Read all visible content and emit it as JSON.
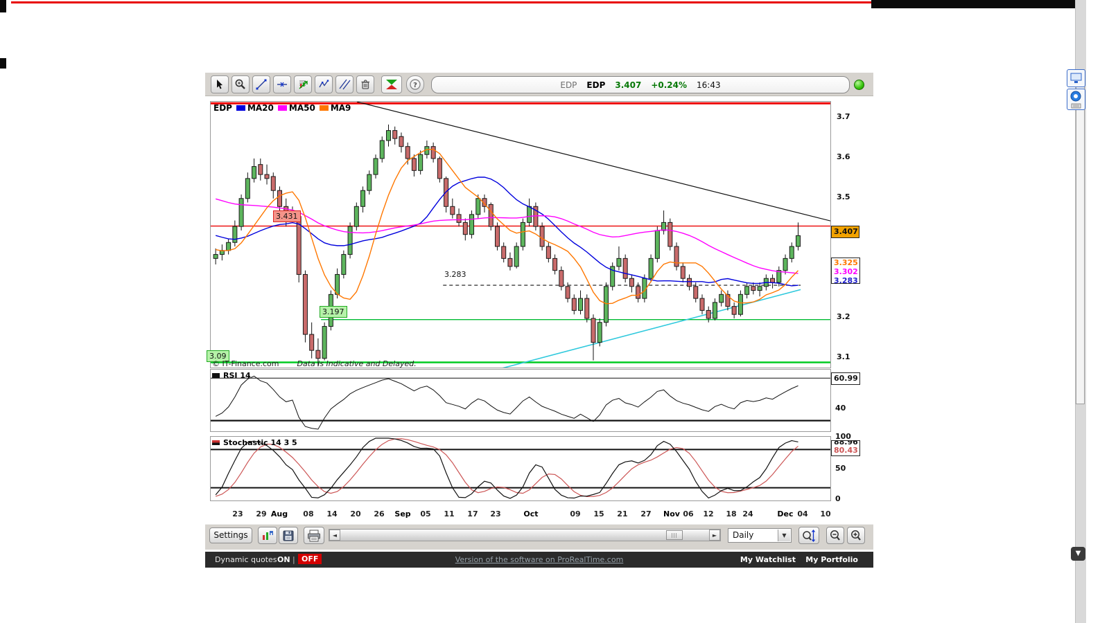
{
  "app": {
    "quote": {
      "exchange": "EDP",
      "symbol": "EDP",
      "last": "3.407",
      "change": "+0.24%",
      "time": "16:43"
    },
    "legend": {
      "symbol": "EDP",
      "items": [
        {
          "label": "MA20",
          "color": "#0000dd"
        },
        {
          "label": "MA50",
          "color": "#ff00ff"
        },
        {
          "label": "MA9",
          "color": "#ff7700"
        }
      ]
    },
    "copyright": "© IT-Finance.com",
    "disclaimer": "Data is Indicative and Delayed.",
    "rsi_label": "RSI 14",
    "stoch_label": "Stochastic 14 3 5"
  },
  "chart_data": {
    "type": "candlestick",
    "title": "EDP Daily with MA20/MA50/MA9, RSI 14, Stochastic 14 3 5",
    "colors": {
      "up": "#5db55d",
      "down": "#c96b6b",
      "wick": "#111111"
    },
    "price_axis": {
      "min": 3.077,
      "max": 3.742,
      "ticks": [
        {
          "label": "3.7",
          "value": 3.7
        },
        {
          "label": "3.6",
          "value": 3.6
        },
        {
          "label": "3.5",
          "value": 3.5
        },
        {
          "label": "3.2",
          "value": 3.2
        },
        {
          "label": "3.1",
          "value": 3.1
        }
      ]
    },
    "last_price_label": {
      "value": "3.407",
      "bg": "#f2a200"
    },
    "ma_labels": [
      {
        "value": "3.325",
        "color": "#ff7700"
      },
      {
        "value": "3.302",
        "color": "#ff00ff"
      },
      {
        "value": "3.283",
        "color": "#2222cc"
      }
    ],
    "price_labels": {
      "resistance": "3.431",
      "dashed": "3.283",
      "support1": "3.197",
      "support2": "3.09"
    },
    "hlines": [
      {
        "price": 3.738,
        "color": "#ee0000",
        "width": 3
      },
      {
        "price": 3.431,
        "color": "#ee2222",
        "width": 1.6
      },
      {
        "price": 3.283,
        "color": "#111111",
        "width": 1.2,
        "dash": true,
        "x1": 0.375,
        "x2": 0.952
      },
      {
        "price": 3.197,
        "color": "#00bb33",
        "width": 1.4,
        "x1": 0.178
      },
      {
        "price": 3.09,
        "color": "#00cc22",
        "width": 2.5
      }
    ],
    "trendlines": [
      {
        "x1": 0.236,
        "p1": 3.742,
        "x2": 1.0,
        "p2": 3.444,
        "color": "#111111",
        "width": 1.2
      },
      {
        "x1": 0.462,
        "p1": 3.072,
        "x2": 0.952,
        "p2": 3.272,
        "color": "#2fc9dd",
        "width": 1.6
      }
    ],
    "candle_span": {
      "start": 0.008,
      "end": 0.948
    },
    "x_ticks": [
      {
        "label": "23",
        "pos": 0.0447
      },
      {
        "label": "29",
        "pos": 0.0828
      },
      {
        "label": "Aug",
        "pos": 0.1119,
        "bold": true
      },
      {
        "label": "08",
        "pos": 0.1588
      },
      {
        "label": "14",
        "pos": 0.1969
      },
      {
        "label": "20",
        "pos": 0.2349
      },
      {
        "label": "26",
        "pos": 0.273
      },
      {
        "label": "Sep",
        "pos": 0.311,
        "bold": true
      },
      {
        "label": "05",
        "pos": 0.3479
      },
      {
        "label": "11",
        "pos": 0.3859
      },
      {
        "label": "17",
        "pos": 0.4239
      },
      {
        "label": "23",
        "pos": 0.4609
      },
      {
        "label": "Oct",
        "pos": 0.5179,
        "bold": true
      },
      {
        "label": "09",
        "pos": 0.5895
      },
      {
        "label": "15",
        "pos": 0.6275
      },
      {
        "label": "21",
        "pos": 0.6655
      },
      {
        "label": "27",
        "pos": 0.7036
      },
      {
        "label": "Nov",
        "pos": 0.745,
        "bold": true
      },
      {
        "label": "06",
        "pos": 0.7718
      },
      {
        "label": "12",
        "pos": 0.8043
      },
      {
        "label": "18",
        "pos": 0.8412
      },
      {
        "label": "24",
        "pos": 0.868
      },
      {
        "label": "Dec",
        "pos": 0.9284,
        "bold": true
      },
      {
        "label": "04",
        "pos": 0.9564
      },
      {
        "label": "10",
        "pos": 0.9933
      }
    ],
    "warmup_closes": [
      3.58,
      3.6,
      3.62,
      3.61,
      3.59,
      3.6,
      3.62,
      3.63,
      3.61,
      3.6,
      3.58,
      3.57,
      3.59,
      3.6,
      3.58,
      3.56,
      3.57,
      3.55,
      3.54,
      3.56,
      3.55,
      3.53,
      3.52,
      3.54,
      3.52,
      3.5,
      3.51,
      3.49,
      3.48,
      3.5,
      3.48,
      3.46,
      3.47,
      3.45,
      3.44,
      3.46,
      3.44,
      3.42,
      3.43,
      3.41,
      3.4,
      3.42,
      3.4,
      3.38,
      3.39,
      3.37,
      3.36,
      3.38,
      3.36,
      3.35
    ],
    "candles": [
      [
        3.35,
        3.375,
        3.335,
        3.36
      ],
      [
        3.36,
        3.385,
        3.345,
        3.37
      ],
      [
        3.37,
        3.4,
        3.36,
        3.39
      ],
      [
        3.39,
        3.445,
        3.38,
        3.43
      ],
      [
        3.43,
        3.51,
        3.42,
        3.5
      ],
      [
        3.5,
        3.565,
        3.49,
        3.55
      ],
      [
        3.55,
        3.6,
        3.54,
        3.58
      ],
      [
        3.585,
        3.6,
        3.545,
        3.56
      ],
      [
        3.56,
        3.585,
        3.535,
        3.55
      ],
      [
        3.555,
        3.565,
        3.5,
        3.52
      ],
      [
        3.52,
        3.53,
        3.465,
        3.48
      ],
      [
        3.48,
        3.5,
        3.43,
        3.45
      ],
      [
        3.45,
        3.48,
        3.44,
        3.46
      ],
      [
        3.455,
        3.46,
        3.29,
        3.31
      ],
      [
        3.31,
        3.32,
        3.14,
        3.16
      ],
      [
        3.16,
        3.19,
        3.1,
        3.12
      ],
      [
        3.12,
        3.15,
        3.08,
        3.1
      ],
      [
        3.1,
        3.19,
        3.095,
        3.18
      ],
      [
        3.18,
        3.27,
        3.17,
        3.26
      ],
      [
        3.26,
        3.325,
        3.25,
        3.31
      ],
      [
        3.31,
        3.37,
        3.3,
        3.36
      ],
      [
        3.36,
        3.44,
        3.35,
        3.43
      ],
      [
        3.43,
        3.49,
        3.42,
        3.48
      ],
      [
        3.48,
        3.53,
        3.465,
        3.52
      ],
      [
        3.52,
        3.57,
        3.51,
        3.56
      ],
      [
        3.56,
        3.61,
        3.55,
        3.6
      ],
      [
        3.6,
        3.655,
        3.59,
        3.645
      ],
      [
        3.645,
        3.685,
        3.63,
        3.67
      ],
      [
        3.67,
        3.68,
        3.635,
        3.65
      ],
      [
        3.655,
        3.665,
        3.615,
        3.63
      ],
      [
        3.63,
        3.64,
        3.585,
        3.6
      ],
      [
        3.6,
        3.61,
        3.555,
        3.57
      ],
      [
        3.57,
        3.62,
        3.56,
        3.61
      ],
      [
        3.61,
        3.645,
        3.6,
        3.63
      ],
      [
        3.63,
        3.64,
        3.59,
        3.6
      ],
      [
        3.6,
        3.605,
        3.54,
        3.55
      ],
      [
        3.55,
        3.555,
        3.465,
        3.48
      ],
      [
        3.48,
        3.5,
        3.45,
        3.46
      ],
      [
        3.46,
        3.475,
        3.43,
        3.44
      ],
      [
        3.44,
        3.45,
        3.395,
        3.41
      ],
      [
        3.41,
        3.47,
        3.4,
        3.46
      ],
      [
        3.46,
        3.51,
        3.45,
        3.5
      ],
      [
        3.5,
        3.51,
        3.465,
        3.48
      ],
      [
        3.485,
        3.49,
        3.42,
        3.43
      ],
      [
        3.43,
        3.44,
        3.37,
        3.38
      ],
      [
        3.38,
        3.39,
        3.34,
        3.35
      ],
      [
        3.35,
        3.365,
        3.32,
        3.33
      ],
      [
        3.33,
        3.39,
        3.325,
        3.38
      ],
      [
        3.38,
        3.45,
        3.37,
        3.44
      ],
      [
        3.44,
        3.5,
        3.43,
        3.48
      ],
      [
        3.48,
        3.49,
        3.42,
        3.43
      ],
      [
        3.43,
        3.44,
        3.37,
        3.38
      ],
      [
        3.38,
        3.39,
        3.34,
        3.35
      ],
      [
        3.35,
        3.36,
        3.31,
        3.32
      ],
      [
        3.32,
        3.33,
        3.27,
        3.28
      ],
      [
        3.28,
        3.29,
        3.24,
        3.25
      ],
      [
        3.25,
        3.26,
        3.21,
        3.22
      ],
      [
        3.22,
        3.27,
        3.21,
        3.25
      ],
      [
        3.25,
        3.26,
        3.19,
        3.2
      ],
      [
        3.2,
        3.21,
        3.095,
        3.14
      ],
      [
        3.14,
        3.2,
        3.13,
        3.19
      ],
      [
        3.19,
        3.29,
        3.18,
        3.28
      ],
      [
        3.28,
        3.34,
        3.27,
        3.33
      ],
      [
        3.33,
        3.38,
        3.32,
        3.35
      ],
      [
        3.35,
        3.36,
        3.29,
        3.3
      ],
      [
        3.3,
        3.31,
        3.265,
        3.28
      ],
      [
        3.28,
        3.29,
        3.24,
        3.25
      ],
      [
        3.25,
        3.31,
        3.24,
        3.3
      ],
      [
        3.3,
        3.36,
        3.29,
        3.35
      ],
      [
        3.35,
        3.43,
        3.34,
        3.42
      ],
      [
        3.42,
        3.47,
        3.41,
        3.44
      ],
      [
        3.44,
        3.45,
        3.37,
        3.38
      ],
      [
        3.38,
        3.39,
        3.32,
        3.33
      ],
      [
        3.33,
        3.34,
        3.29,
        3.3
      ],
      [
        3.3,
        3.31,
        3.27,
        3.28
      ],
      [
        3.28,
        3.29,
        3.24,
        3.25
      ],
      [
        3.25,
        3.26,
        3.21,
        3.22
      ],
      [
        3.22,
        3.23,
        3.19,
        3.2
      ],
      [
        3.2,
        3.25,
        3.195,
        3.24
      ],
      [
        3.24,
        3.27,
        3.23,
        3.26
      ],
      [
        3.26,
        3.27,
        3.22,
        3.23
      ],
      [
        3.23,
        3.24,
        3.2,
        3.21
      ],
      [
        3.21,
        3.27,
        3.205,
        3.26
      ],
      [
        3.26,
        3.29,
        3.25,
        3.28
      ],
      [
        3.28,
        3.29,
        3.26,
        3.27
      ],
      [
        3.27,
        3.29,
        3.255,
        3.28
      ],
      [
        3.28,
        3.31,
        3.27,
        3.3
      ],
      [
        3.3,
        3.31,
        3.275,
        3.29
      ],
      [
        3.29,
        3.33,
        3.28,
        3.32
      ],
      [
        3.32,
        3.36,
        3.31,
        3.35
      ],
      [
        3.35,
        3.39,
        3.34,
        3.38
      ],
      [
        3.38,
        3.44,
        3.37,
        3.407
      ]
    ],
    "ma": [
      {
        "name": "MA20",
        "period": 20,
        "color": "#0000dd"
      },
      {
        "name": "MA50",
        "period": 50,
        "color": "#ff00ff"
      },
      {
        "name": "MA9",
        "period": 9,
        "color": "#ff7700"
      }
    ],
    "rsi": {
      "period": 14,
      "levels": [
        70,
        30
      ],
      "scale_min": 20,
      "scale_max": 78,
      "axis_tick": "40",
      "value_label": "60.99"
    },
    "stoch": {
      "k": 14,
      "slow": 3,
      "d": 5,
      "levels": [
        80,
        20
      ],
      "ticks": [
        "100",
        "50",
        "0"
      ],
      "value_k": "88.96",
      "value_d": "80.43",
      "k_color": "#111111",
      "d_color": "#cc5555"
    }
  },
  "bottom_toolbar": {
    "settings": "Settings",
    "interval": "Daily"
  },
  "footer": {
    "dynamic_quotes": "Dynamic quotes",
    "on": "ON",
    "sep": "|",
    "off": "OFF",
    "off_bg": "#d40000",
    "link": "Version of the software on ProRealTime.com",
    "watchlist": "My Watchlist",
    "portfolio": "My Portfolio"
  }
}
